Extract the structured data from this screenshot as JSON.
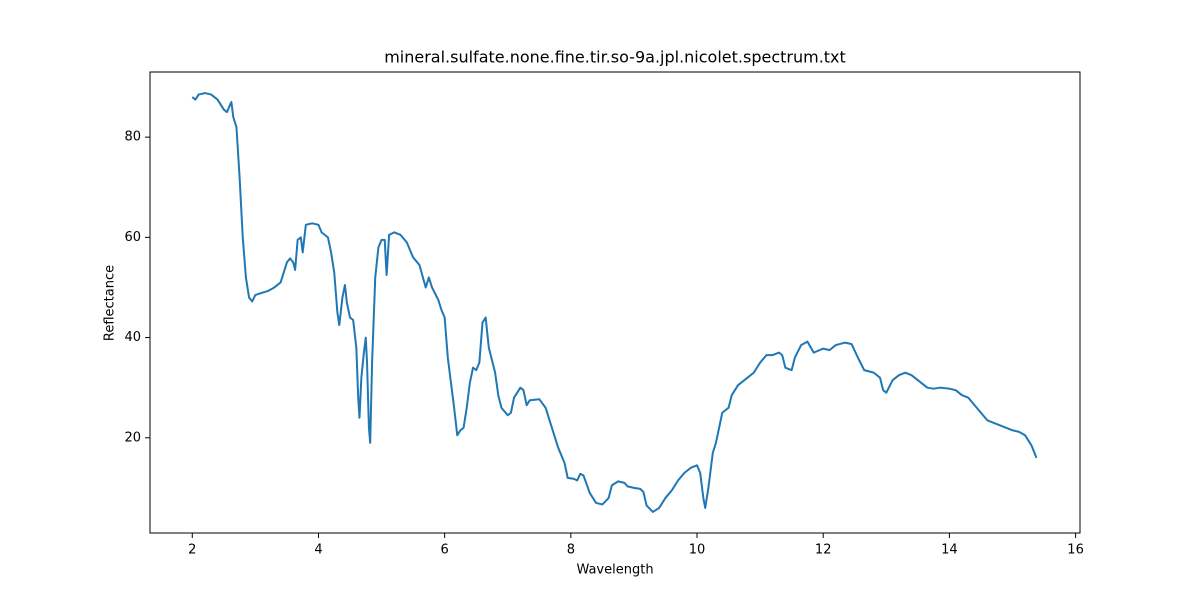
{
  "chart_data": {
    "type": "line",
    "title": "mineral.sulfate.none.fine.tir.so-9a.jpl.nicolet.spectrum.txt",
    "x_label": "Wavelength",
    "y_label": "Reflectance",
    "xlim": [
      1.33,
      16.07
    ],
    "ylim": [
      1.0,
      93.0
    ],
    "xticks": [
      2,
      4,
      6,
      8,
      10,
      12,
      14,
      16
    ],
    "yticks": [
      20,
      40,
      60,
      80
    ],
    "grid": false,
    "series": [
      {
        "color": "#1f77b4",
        "x": [
          2.0,
          2.05,
          2.1,
          2.2,
          2.3,
          2.4,
          2.5,
          2.55,
          2.6,
          2.62,
          2.65,
          2.7,
          2.75,
          2.8,
          2.85,
          2.9,
          2.95,
          3.0,
          3.2,
          3.3,
          3.4,
          3.5,
          3.55,
          3.6,
          3.63,
          3.67,
          3.72,
          3.75,
          3.8,
          3.9,
          4.0,
          4.05,
          4.15,
          4.2,
          4.25,
          4.3,
          4.33,
          4.38,
          4.42,
          4.45,
          4.5,
          4.55,
          4.6,
          4.63,
          4.65,
          4.68,
          4.72,
          4.75,
          4.77,
          4.8,
          4.82,
          4.85,
          4.9,
          4.95,
          5.0,
          5.05,
          5.08,
          5.12,
          5.2,
          5.3,
          5.4,
          5.5,
          5.6,
          5.7,
          5.75,
          5.8,
          5.9,
          5.95,
          6.0,
          6.05,
          6.1,
          6.15,
          6.2,
          6.25,
          6.3,
          6.35,
          6.4,
          6.45,
          6.5,
          6.55,
          6.6,
          6.65,
          6.7,
          6.8,
          6.85,
          6.9,
          7.0,
          7.05,
          7.1,
          7.2,
          7.25,
          7.3,
          7.35,
          7.5,
          7.6,
          7.7,
          7.8,
          7.9,
          7.95,
          8.05,
          8.1,
          8.15,
          8.2,
          8.3,
          8.4,
          8.5,
          8.6,
          8.65,
          8.75,
          8.85,
          8.9,
          9.0,
          9.1,
          9.15,
          9.2,
          9.3,
          9.4,
          9.5,
          9.6,
          9.7,
          9.8,
          9.9,
          10.0,
          10.05,
          10.1,
          10.13,
          10.18,
          10.25,
          10.3,
          10.35,
          10.4,
          10.5,
          10.55,
          10.65,
          10.8,
          10.9,
          11.0,
          11.1,
          11.2,
          11.3,
          11.35,
          11.4,
          11.5,
          11.55,
          11.65,
          11.75,
          11.85,
          12.0,
          12.1,
          12.2,
          12.35,
          12.45,
          12.55,
          12.65,
          12.8,
          12.9,
          12.95,
          13.0,
          13.1,
          13.2,
          13.3,
          13.4,
          13.5,
          13.65,
          13.75,
          13.85,
          14.0,
          14.1,
          14.2,
          14.3,
          14.4,
          14.5,
          14.6,
          14.7,
          14.8,
          14.9,
          15.0,
          15.1,
          15.2,
          15.3,
          15.38
        ],
        "values": [
          88,
          87.5,
          88.5,
          88.8,
          88.5,
          87.5,
          85.5,
          85,
          86.5,
          87,
          84,
          82,
          72,
          60,
          52,
          48,
          47.2,
          48.5,
          49.3,
          50,
          51,
          55,
          55.8,
          55,
          53.5,
          59.5,
          60,
          57,
          62.5,
          62.8,
          62.5,
          61,
          60,
          57,
          53,
          45,
          42.5,
          48,
          50.5,
          47,
          44,
          43.5,
          38,
          28,
          24,
          32,
          37,
          40,
          35,
          22,
          19,
          35,
          52,
          58,
          59.5,
          59.5,
          52.5,
          60.5,
          61,
          60.5,
          59,
          56,
          54.5,
          50,
          52,
          50,
          47.5,
          45.5,
          44,
          36,
          31,
          26,
          20.5,
          21.5,
          22,
          26,
          31,
          34,
          33.5,
          35,
          43,
          44,
          38,
          33,
          28.5,
          26,
          24.5,
          25,
          28,
          30,
          29.5,
          26.5,
          27.5,
          27.7,
          26,
          22,
          18,
          15,
          12,
          11.8,
          11.5,
          12.8,
          12.5,
          9,
          7,
          6.7,
          8,
          10.5,
          11.3,
          11,
          10.3,
          10,
          9.8,
          9.2,
          6.5,
          5.2,
          6,
          8,
          9.5,
          11.5,
          13,
          14,
          14.5,
          13,
          8,
          6,
          10,
          17,
          19,
          22,
          25,
          26,
          28.5,
          30.5,
          32,
          33,
          35,
          36.5,
          36.5,
          37,
          36.5,
          34,
          33.5,
          36,
          38.5,
          39.2,
          37,
          37.8,
          37.5,
          38.5,
          39,
          38.7,
          36,
          33.5,
          33,
          32,
          29.5,
          29,
          31.5,
          32.5,
          33,
          32.5,
          31.5,
          30,
          29.8,
          30,
          29.8,
          29.5,
          28.5,
          28,
          26.5,
          25,
          23.5,
          23,
          22.5,
          22,
          21.5,
          21.2,
          20.5,
          18.5,
          16
        ]
      }
    ]
  }
}
